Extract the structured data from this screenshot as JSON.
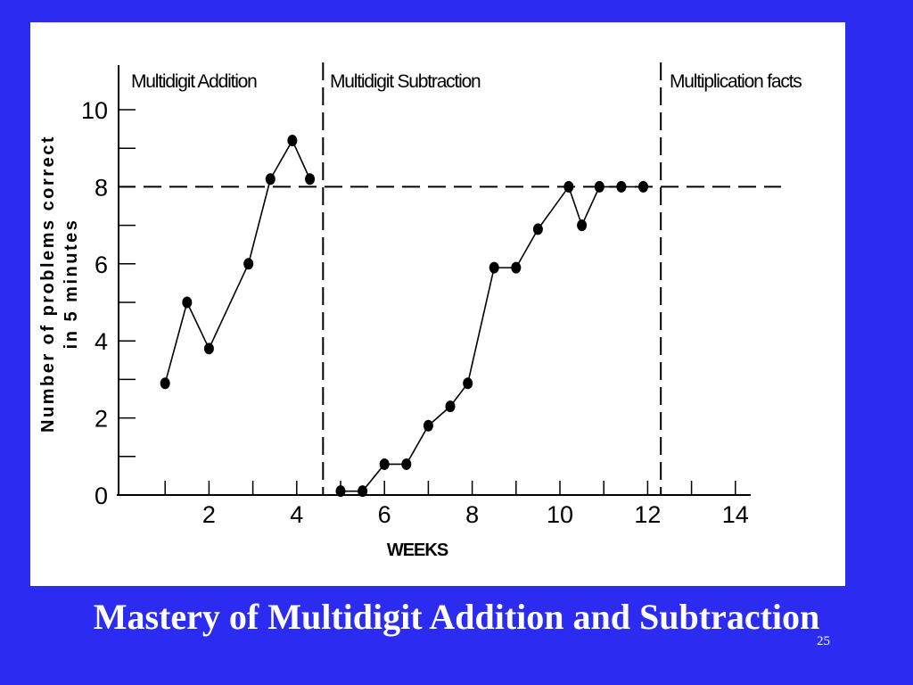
{
  "slide": {
    "title": "Mastery of Multidigit Addition and Subtraction",
    "number": "25",
    "background_color": "#2b2bf2"
  },
  "chart_data": {
    "type": "line",
    "xlabel": "WEEKS",
    "ylabel_line1": "Number of problems correct",
    "ylabel_line2": "in 5 minutes",
    "xlim": [
      0,
      15
    ],
    "ylim": [
      0,
      10
    ],
    "x_ticks": [
      2,
      4,
      6,
      8,
      10,
      12,
      14
    ],
    "y_ticks": [
      0,
      2,
      4,
      6,
      8,
      10
    ],
    "aim_line": {
      "y": 8,
      "style": "dashed"
    },
    "phase_lines": [
      4.6,
      12.3
    ],
    "phases": [
      {
        "label": "Multidigit Addition"
      },
      {
        "label": "Multidigit Subtraction"
      },
      {
        "label": "Multiplication facts"
      }
    ],
    "series": [
      {
        "phase": "Multidigit Addition",
        "points": [
          [
            1,
            2.9
          ],
          [
            1.5,
            5.0
          ],
          [
            2,
            3.8
          ],
          [
            2.9,
            6.0
          ],
          [
            3.4,
            8.2
          ],
          [
            3.9,
            9.2
          ],
          [
            4.3,
            8.2
          ]
        ]
      },
      {
        "phase": "Multidigit Subtraction",
        "points": [
          [
            5,
            0.1
          ],
          [
            5.5,
            0.1
          ],
          [
            6,
            0.8
          ],
          [
            6.5,
            0.8
          ],
          [
            7,
            1.8
          ],
          [
            7.5,
            2.3
          ],
          [
            7.9,
            2.9
          ],
          [
            8.5,
            5.9
          ],
          [
            9,
            5.9
          ],
          [
            9.5,
            6.9
          ],
          [
            10.2,
            8.0
          ],
          [
            10.5,
            7.0
          ],
          [
            10.9,
            8.0
          ],
          [
            11.4,
            8.0
          ],
          [
            11.9,
            8.0
          ]
        ]
      }
    ]
  }
}
